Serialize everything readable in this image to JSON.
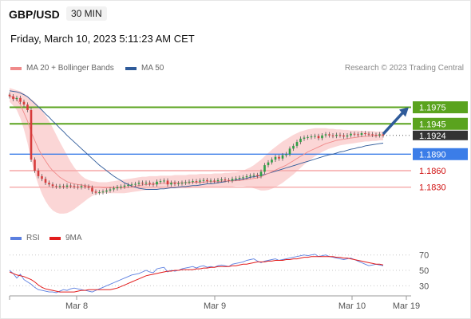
{
  "header": {
    "symbol": "GBP/USD",
    "timeframe": "30 MIN",
    "datetime": "Friday, March 10, 2023 5:11:23 AM CET"
  },
  "legend_top": [
    {
      "label": "MA 20 + Bollinger Bands",
      "color": "#f08a8a"
    },
    {
      "label": "MA 50",
      "color": "#2f5b9a"
    }
  ],
  "legend_bottom": [
    {
      "label": "RSI",
      "color": "#5b7fe0"
    },
    {
      "label": "9MA",
      "color": "#e21c1c"
    }
  ],
  "credit": "Research © 2023 Trading Central",
  "colors": {
    "resistance": "#5aa31e",
    "pivot": "#3b7de8",
    "support": "#f5a7a7",
    "support_text": "#d01010",
    "candle_up": "#2e9e44",
    "candle_down": "#d63b3b",
    "band": "#fbd6d6",
    "ma20": "#f08a8a",
    "ma50": "#2f5b9a",
    "current": "#333333",
    "arrow": "#2f5b9a"
  },
  "chart_data": [
    {
      "type": "candlestick",
      "ylim": [
        1.175,
        1.2025
      ],
      "xlabels": [
        "Mar 8",
        "Mar 9",
        "Mar 10",
        "Mar 19"
      ],
      "current_price": "1.1924",
      "levels": [
        {
          "value": 1.1975,
          "label": "1.1975",
          "kind": "resistance"
        },
        {
          "value": 1.1945,
          "label": "1.1945",
          "kind": "resistance"
        },
        {
          "value": 1.189,
          "label": "1.1890",
          "kind": "pivot"
        },
        {
          "value": 1.186,
          "label": "1.1860",
          "kind": "support"
        },
        {
          "value": 1.183,
          "label": "1.1830",
          "kind": "support"
        }
      ],
      "forecast": {
        "from": 1.1925,
        "to": 1.1975
      },
      "close": [
        1.1995,
        1.199,
        1.1992,
        1.1985,
        1.198,
        1.197,
        1.188,
        1.186,
        1.185,
        1.1845,
        1.1838,
        1.1835,
        1.1832,
        1.1831,
        1.1832,
        1.1831,
        1.1833,
        1.1832,
        1.1831,
        1.183,
        1.1832,
        1.1831,
        1.1829,
        1.1822,
        1.182,
        1.1821,
        1.1822,
        1.1824,
        1.1826,
        1.1828,
        1.183,
        1.1831,
        1.1833,
        1.1834,
        1.1835,
        1.1836,
        1.1838,
        1.1837,
        1.1838,
        1.1836,
        1.1835,
        1.184,
        1.1841,
        1.1842,
        1.1835,
        1.1838,
        1.1836,
        1.1837,
        1.1838,
        1.1839,
        1.184,
        1.1841,
        1.184,
        1.1842,
        1.1843,
        1.1841,
        1.1842,
        1.1841,
        1.1843,
        1.1844,
        1.1843,
        1.1842,
        1.1845,
        1.1846,
        1.1847,
        1.1848,
        1.185,
        1.1851,
        1.1852,
        1.185,
        1.1858,
        1.187,
        1.1875,
        1.188,
        1.1885,
        1.1882,
        1.1888,
        1.189,
        1.19,
        1.1905,
        1.1912,
        1.1918,
        1.192,
        1.1921,
        1.1922,
        1.1923,
        1.1919,
        1.1924,
        1.1926,
        1.1924,
        1.1923,
        1.1925,
        1.1924,
        1.1922,
        1.1924,
        1.1927,
        1.1926,
        1.1925,
        1.1928,
        1.1927,
        1.1926,
        1.1925,
        1.1924,
        1.1926,
        1.1924
      ],
      "ma20": [
        1.1995,
        1.1993,
        1.199,
        1.198,
        1.1965,
        1.195,
        1.193,
        1.1915,
        1.19,
        1.1888,
        1.1878,
        1.1868,
        1.186,
        1.1854,
        1.1848,
        1.1844,
        1.184,
        1.1838,
        1.1836,
        1.1835,
        1.1834,
        1.1833,
        1.1832,
        1.1831,
        1.183,
        1.183,
        1.1829,
        1.1829,
        1.1829,
        1.1829,
        1.1829,
        1.1829,
        1.1829,
        1.183,
        1.1831,
        1.1832,
        1.1833,
        1.1834,
        1.1835,
        1.1835,
        1.1836,
        1.1836,
        1.1837,
        1.1837,
        1.1837,
        1.1838,
        1.1838,
        1.1838,
        1.1838,
        1.1838,
        1.1838,
        1.1839,
        1.1839,
        1.1839,
        1.1839,
        1.184,
        1.184,
        1.184,
        1.184,
        1.1841,
        1.1841,
        1.1841,
        1.1841,
        1.1842,
        1.1842,
        1.1843,
        1.1844,
        1.1845,
        1.1846,
        1.1847,
        1.1849,
        1.1852,
        1.1855,
        1.1858,
        1.1861,
        1.1864,
        1.1867,
        1.187,
        1.1874,
        1.1878,
        1.1882,
        1.1886,
        1.189,
        1.1894,
        1.1897,
        1.19,
        1.1903,
        1.1906,
        1.1909,
        1.1911,
        1.1913,
        1.1915,
        1.1916,
        1.1917,
        1.1918,
        1.1919,
        1.192,
        1.1921,
        1.1922,
        1.1922,
        1.1923,
        1.1923,
        1.1924,
        1.1924,
        1.1924
      ],
      "ma50": [
        1.2005,
        1.2004,
        1.2003,
        1.2001,
        1.1998,
        1.1994,
        1.1988,
        1.1982,
        1.1976,
        1.197,
        1.1963,
        1.1957,
        1.195,
        1.1944,
        1.1937,
        1.1931,
        1.1924,
        1.1918,
        1.1912,
        1.1906,
        1.19,
        1.1894,
        1.1888,
        1.1882,
        1.1876,
        1.187,
        1.1865,
        1.186,
        1.1855,
        1.185,
        1.1846,
        1.1842,
        1.1838,
        1.1835,
        1.1832,
        1.183,
        1.1828,
        1.1827,
        1.1826,
        1.1826,
        1.1826,
        1.1826,
        1.1827,
        1.1827,
        1.1828,
        1.1829,
        1.1829,
        1.183,
        1.1831,
        1.1831,
        1.1832,
        1.1833,
        1.1833,
        1.1834,
        1.1835,
        1.1836,
        1.1836,
        1.1837,
        1.1838,
        1.1839,
        1.184,
        1.1841,
        1.1842,
        1.1843,
        1.1844,
        1.1845,
        1.1846,
        1.1848,
        1.1849,
        1.185,
        1.1852,
        1.1853,
        1.1855,
        1.1857,
        1.1859,
        1.1861,
        1.1863,
        1.1865,
        1.1867,
        1.1869,
        1.1871,
        1.1873,
        1.1875,
        1.1877,
        1.1879,
        1.1881,
        1.1883,
        1.1885,
        1.1887,
        1.1889,
        1.189,
        1.1892,
        1.1894,
        1.1895,
        1.1897,
        1.1899,
        1.19,
        1.1902,
        1.1903,
        1.1905,
        1.1906,
        1.1907,
        1.1908,
        1.1909,
        1.191
      ],
      "band_upper": [
        1.201,
        1.2008,
        1.2006,
        1.2004,
        1.2,
        1.1995,
        1.199,
        1.1985,
        1.1978,
        1.197,
        1.196,
        1.195,
        1.1938,
        1.1925,
        1.1912,
        1.19,
        1.1888,
        1.1876,
        1.1866,
        1.1858,
        1.1851,
        1.1846,
        1.1843,
        1.1841,
        1.184,
        1.1839,
        1.1839,
        1.1839,
        1.184,
        1.1841,
        1.1842,
        1.1843,
        1.1844,
        1.1845,
        1.1846,
        1.1847,
        1.1848,
        1.1849,
        1.1849,
        1.185,
        1.185,
        1.185,
        1.1851,
        1.1851,
        1.1851,
        1.1851,
        1.1852,
        1.1852,
        1.1852,
        1.1852,
        1.1853,
        1.1853,
        1.1853,
        1.1854,
        1.1854,
        1.1854,
        1.1854,
        1.1855,
        1.1855,
        1.1855,
        1.1856,
        1.1856,
        1.1857,
        1.1857,
        1.1858,
        1.186,
        1.1863,
        1.1866,
        1.187,
        1.1875,
        1.188,
        1.1886,
        1.1892,
        1.1898,
        1.1903,
        1.1908,
        1.1913,
        1.1917,
        1.1921,
        1.1925,
        1.1928,
        1.1931,
        1.1933,
        1.1935,
        1.1936,
        1.1937,
        1.1937,
        1.1937,
        1.1937,
        1.1936,
        1.1936,
        1.1935,
        1.1935,
        1.1934,
        1.1934,
        1.1933,
        1.1933,
        1.1933,
        1.1932,
        1.1932,
        1.1932,
        1.1932,
        1.1931,
        1.1931,
        1.1931
      ],
      "band_lower": [
        1.1985,
        1.1978,
        1.197,
        1.1955,
        1.1935,
        1.191,
        1.188,
        1.1855,
        1.1835,
        1.1818,
        1.1805,
        1.1795,
        1.1788,
        1.1784,
        1.1782,
        1.1782,
        1.1783,
        1.1786,
        1.179,
        1.1795,
        1.18,
        1.1805,
        1.181,
        1.1814,
        1.1817,
        1.1818,
        1.1819,
        1.1819,
        1.1819,
        1.1819,
        1.1819,
        1.1819,
        1.1819,
        1.182,
        1.1821,
        1.1822,
        1.1823,
        1.1824,
        1.1825,
        1.1825,
        1.1826,
        1.1826,
        1.1827,
        1.1827,
        1.1827,
        1.1828,
        1.1828,
        1.1828,
        1.1828,
        1.1828,
        1.1828,
        1.1829,
        1.1829,
        1.1829,
        1.1829,
        1.183,
        1.183,
        1.183,
        1.183,
        1.1831,
        1.1831,
        1.1831,
        1.1831,
        1.1832,
        1.1832,
        1.1832,
        1.1831,
        1.183,
        1.1828,
        1.1826,
        1.1824,
        1.1824,
        1.1825,
        1.1827,
        1.183,
        1.1834,
        1.1838,
        1.1843,
        1.1848,
        1.1853,
        1.1859,
        1.1865,
        1.1871,
        1.1876,
        1.1881,
        1.1886,
        1.189,
        1.1894,
        1.1897,
        1.19,
        1.1902,
        1.1904,
        1.1906,
        1.1907,
        1.1908,
        1.1909,
        1.191,
        1.1911,
        1.1912,
        1.1913,
        1.1913,
        1.1914,
        1.1914,
        1.1915,
        1.1915
      ]
    },
    {
      "type": "line",
      "ylim": [
        20,
        78
      ],
      "yticks": [
        70,
        50,
        30
      ],
      "rsi": [
        50,
        46,
        40,
        45,
        38,
        35,
        32,
        28,
        25,
        24,
        23,
        22,
        22,
        21,
        23,
        25,
        24,
        26,
        27,
        26,
        25,
        24,
        23,
        22,
        24,
        26,
        28,
        30,
        32,
        34,
        36,
        38,
        40,
        42,
        44,
        45,
        46,
        48,
        50,
        48,
        47,
        52,
        53,
        54,
        48,
        50,
        49,
        50,
        52,
        53,
        54,
        55,
        53,
        55,
        56,
        54,
        55,
        54,
        56,
        57,
        56,
        55,
        58,
        59,
        60,
        61,
        63,
        64,
        65,
        62,
        60,
        62,
        63,
        64,
        65,
        63,
        64,
        65,
        66,
        67,
        68,
        69,
        70,
        69,
        70,
        71,
        68,
        69,
        70,
        68,
        67,
        66,
        65,
        64,
        65,
        66,
        64,
        62,
        60,
        58,
        56,
        57,
        58,
        57,
        56
      ],
      "ma9": [
        48,
        46,
        44,
        43,
        42,
        40,
        38,
        35,
        31,
        28,
        26,
        25,
        24,
        23,
        22,
        22,
        22,
        22,
        22,
        23,
        24,
        24,
        25,
        25,
        25,
        25,
        25,
        25,
        25,
        26,
        27,
        29,
        31,
        33,
        35,
        37,
        39,
        41,
        43,
        44,
        45,
        46,
        47,
        48,
        49,
        49,
        50,
        50,
        51,
        51,
        51,
        51,
        52,
        52,
        53,
        53,
        54,
        54,
        55,
        55,
        55,
        55,
        56,
        56,
        57,
        58,
        58,
        59,
        60,
        61,
        61,
        61,
        62,
        62,
        63,
        63,
        63,
        64,
        64,
        65,
        65,
        66,
        67,
        67,
        68,
        68,
        68,
        68,
        68,
        68,
        68,
        67,
        67,
        66,
        66,
        65,
        64,
        63,
        62,
        61,
        60,
        59,
        58,
        58,
        57
      ]
    }
  ]
}
